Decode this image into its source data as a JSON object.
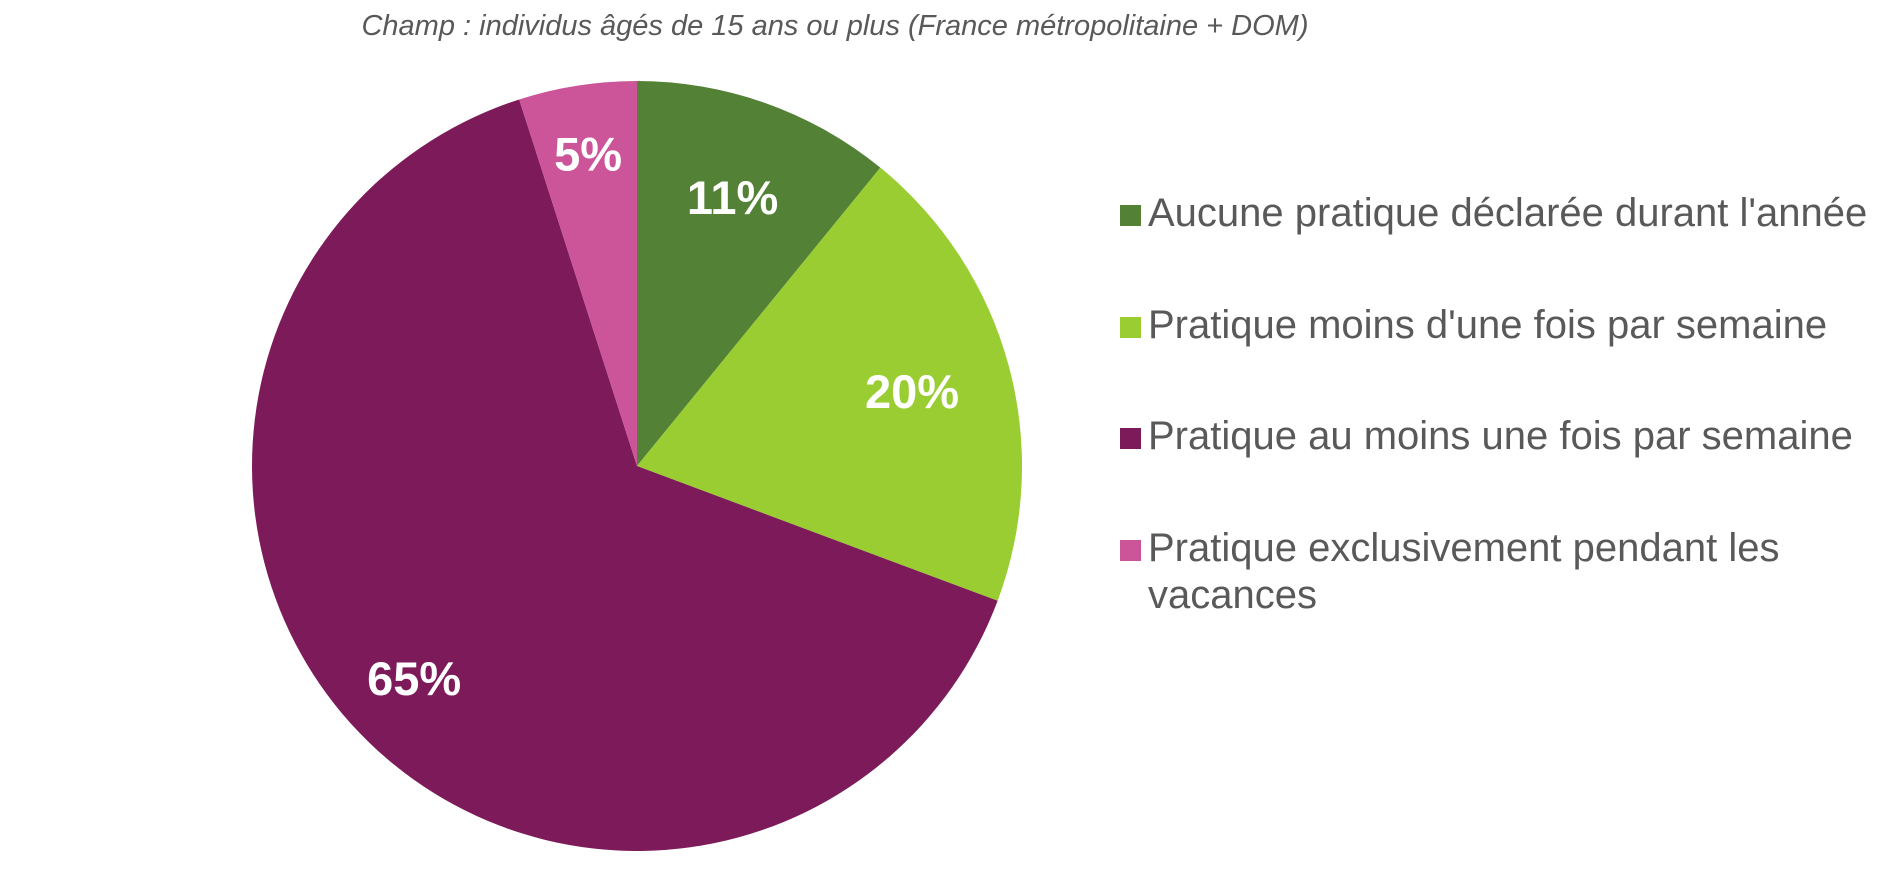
{
  "chart_data": {
    "type": "pie",
    "subtitle": "Champ : individus âgés de 15 ans ou plus (France métropolitaine + DOM)",
    "categories": [
      "Aucune pratique déclarée durant l'année",
      "Pratique moins d'une fois par semaine",
      "Pratique au moins une fois par semaine",
      "Pratique exclusivement pendant les vacances"
    ],
    "values": [
      11,
      20,
      65,
      5
    ],
    "value_labels": [
      "11%",
      "20%",
      "65%",
      "5%"
    ],
    "colors": [
      "#538135",
      "#9ACD32",
      "#7D1A5A",
      "#CC5599"
    ],
    "legend_position": "right"
  }
}
